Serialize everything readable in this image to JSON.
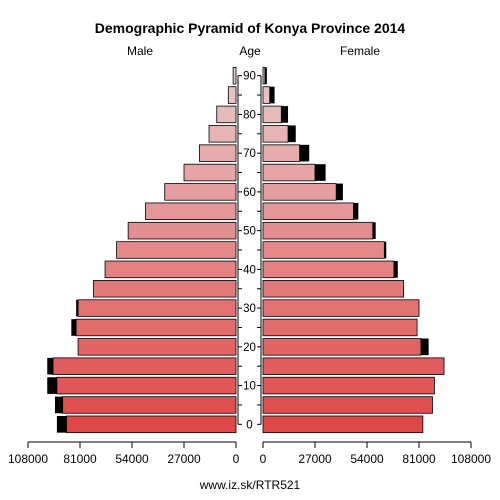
{
  "chart_data": {
    "type": "bar",
    "orientation": "horizontal-pyramid",
    "title": "Demographic Pyramid of Konya Province 2014",
    "male_label": "Male",
    "female_label": "Female",
    "age_label": "Age",
    "source": "www.iz.sk/RTR521",
    "xlim": [
      0,
      108000
    ],
    "x_tick_labels": [
      "108000",
      "81000",
      "54000",
      "27000",
      "0",
      "0",
      "27000",
      "54000",
      "81000",
      "108000"
    ],
    "x_ticks": [
      108000,
      81000,
      54000,
      27000,
      0
    ],
    "age_ticks": [
      "0",
      "10",
      "20",
      "30",
      "40",
      "50",
      "60",
      "70",
      "80",
      "90"
    ],
    "age_groups": [
      "0-4",
      "5-9",
      "10-14",
      "15-19",
      "20-24",
      "25-29",
      "30-34",
      "35-39",
      "40-44",
      "45-49",
      "50-54",
      "55-59",
      "60-64",
      "65-69",
      "70-74",
      "75-79",
      "80-84",
      "85-89",
      "90+"
    ],
    "series": [
      {
        "name": "Male",
        "values": [
          88000,
          90000,
          93000,
          95000,
          82000,
          83000,
          82000,
          74000,
          68000,
          62000,
          56000,
          47000,
          37000,
          27000,
          19000,
          14000,
          10000,
          4000,
          1500
        ],
        "surplus": [
          5000,
          4000,
          5000,
          3000,
          0,
          2500,
          1000,
          0,
          0,
          0,
          0,
          0,
          0,
          0,
          0,
          0,
          0,
          0,
          0
        ]
      },
      {
        "name": "Female",
        "values": [
          83000,
          88000,
          89000,
          94000,
          82000,
          80000,
          81000,
          73000,
          68000,
          63000,
          57000,
          47000,
          38000,
          27000,
          19000,
          13000,
          9500,
          3500,
          1000
        ],
        "surplus": [
          0,
          0,
          0,
          0,
          4000,
          0,
          0,
          0,
          2000,
          1000,
          1500,
          2500,
          3500,
          5500,
          5000,
          4000,
          3500,
          2500,
          1000
        ]
      }
    ],
    "colors": {
      "young": "#e04848",
      "old": "#e8c8c8",
      "surplus": "#000000"
    },
    "grid": false,
    "legend": "none"
  }
}
